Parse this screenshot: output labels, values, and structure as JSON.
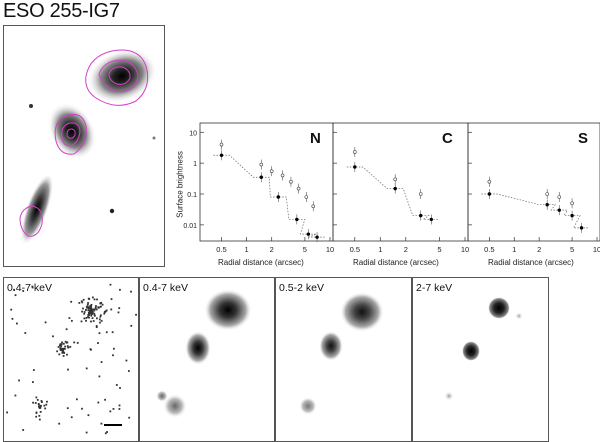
{
  "title": "ESO 255-IG7",
  "chart_data": [
    {
      "type": "scatter",
      "panel": "N",
      "xlabel": "Radial distance (arcsec)",
      "ylabel": "Surface brightness",
      "xscale": "log",
      "yscale": "log",
      "xlim": [
        0.3,
        10
      ],
      "ylim": [
        0.003,
        20
      ],
      "xticks": [
        "0.5",
        "1",
        "2",
        "5",
        "10"
      ],
      "yticks": [
        "10",
        "1",
        "0.1",
        "0.01"
      ],
      "series": [
        {
          "style": "filled",
          "x": [
            0.5,
            1.5,
            2.4,
            4.0,
            5.5,
            7.0
          ],
          "y": [
            1.8,
            0.35,
            0.08,
            0.015,
            0.005,
            0.004
          ]
        },
        {
          "style": "open",
          "x": [
            0.5,
            1.5,
            2.0,
            2.7,
            3.4,
            4.2,
            5.2,
            6.3
          ],
          "y": [
            4.0,
            0.9,
            0.55,
            0.4,
            0.25,
            0.15,
            0.08,
            0.04
          ]
        }
      ]
    },
    {
      "type": "scatter",
      "panel": "C",
      "xlabel": "Radial distance (arcsec)",
      "xscale": "log",
      "yscale": "log",
      "xlim": [
        0.3,
        10
      ],
      "ylim": [
        0.003,
        20
      ],
      "xticks": [
        "0.5",
        "1",
        "2",
        "5",
        "10"
      ],
      "series": [
        {
          "style": "filled",
          "x": [
            0.5,
            1.5,
            3.0,
            4.0
          ],
          "y": [
            0.75,
            0.15,
            0.02,
            0.015
          ]
        },
        {
          "style": "open",
          "x": [
            0.5,
            1.5,
            3.0
          ],
          "y": [
            2.3,
            0.3,
            0.1
          ]
        }
      ]
    },
    {
      "type": "scatter",
      "panel": "S",
      "xlabel": "Radial distance (arcsec)",
      "xscale": "log",
      "yscale": "log",
      "xlim": [
        0.3,
        10
      ],
      "ylim": [
        0.003,
        20
      ],
      "xticks": [
        "0.5",
        "1",
        "2",
        "5",
        "10"
      ],
      "series": [
        {
          "style": "filled",
          "x": [
            0.5,
            2.5,
            3.5,
            5.0,
            6.5
          ],
          "y": [
            0.1,
            0.045,
            0.03,
            0.02,
            0.008
          ]
        },
        {
          "style": "open",
          "x": [
            0.5,
            2.5,
            3.5,
            5.0
          ],
          "y": [
            0.25,
            0.1,
            0.08,
            0.05
          ]
        }
      ]
    }
  ],
  "xray_panels": [
    {
      "label": "0.4-7 keV"
    },
    {
      "label": "0.4-7 keV"
    },
    {
      "label": "0.5-2 keV"
    },
    {
      "label": "2-7 keV"
    }
  ]
}
